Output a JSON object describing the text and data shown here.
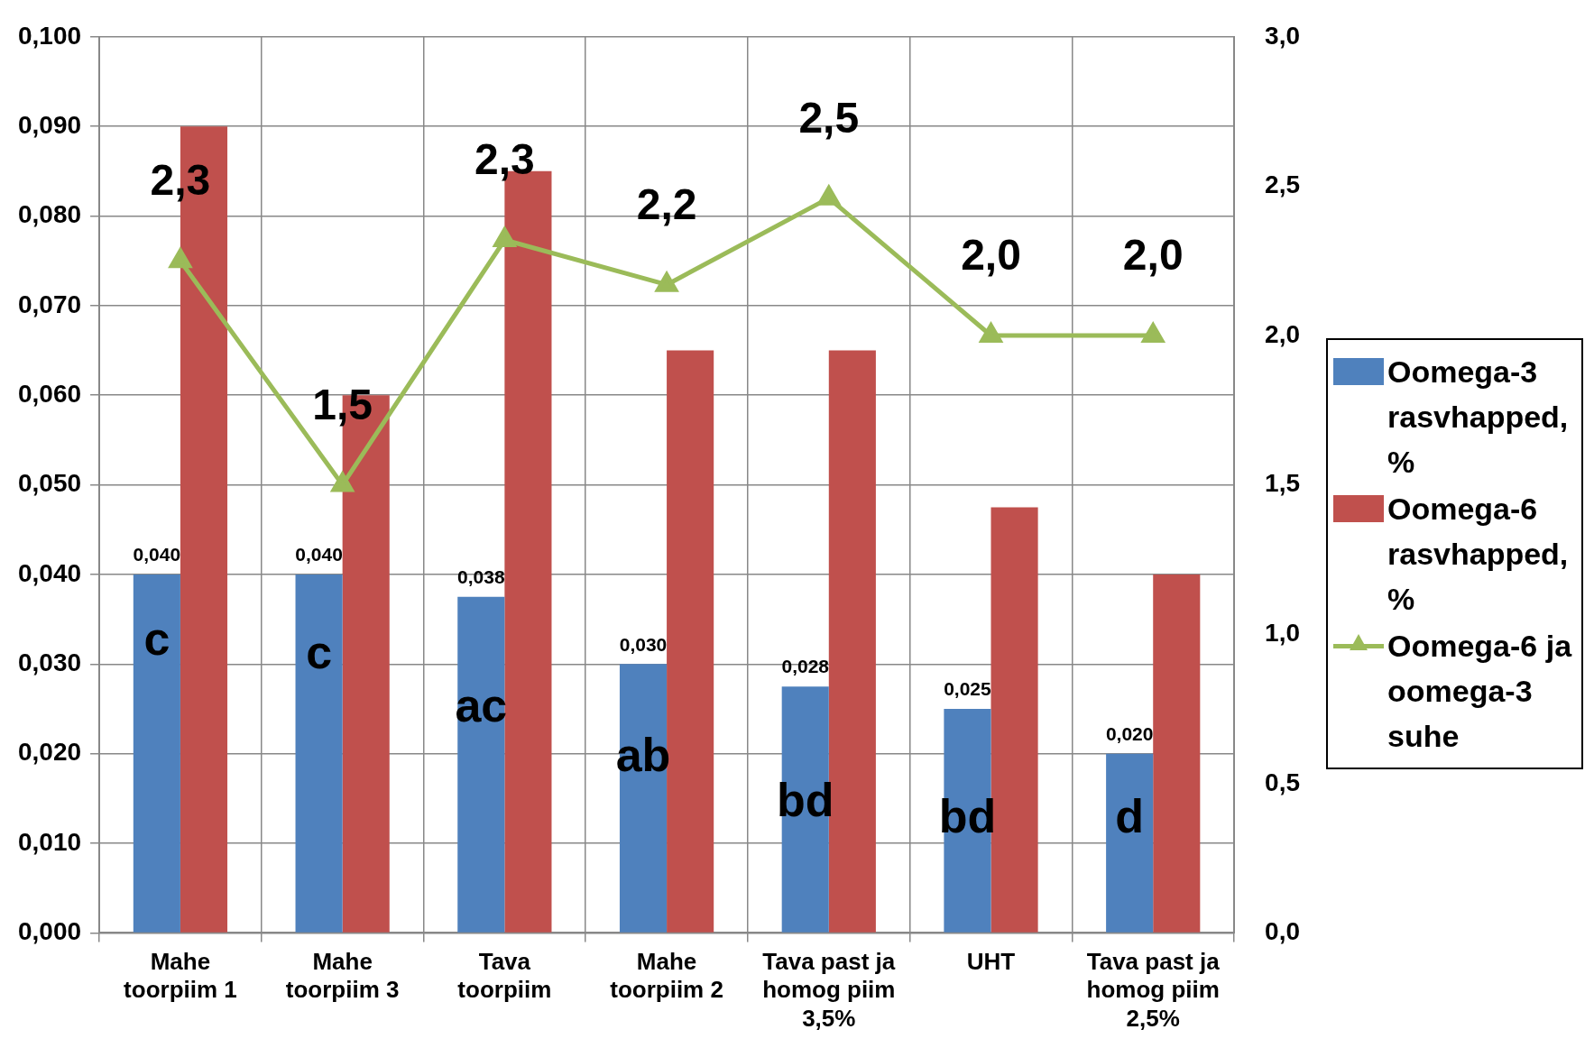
{
  "chart_data": {
    "type": "bar",
    "categories": [
      "Mahe toorpiim 1",
      "Mahe toorpiim 3",
      "Tava toorpiim",
      "Mahe toorpiim 2",
      "Tava past ja homog piim 3,5%",
      "UHT",
      "Tava past ja homog piim 2,5%"
    ],
    "series": [
      {
        "name": "Oomega-3 rasvhapped, %",
        "color": "#4f81bd",
        "values": [
          0.04,
          0.04,
          0.0375,
          0.03,
          0.0275,
          0.025,
          0.02
        ],
        "value_labels": [
          "0,040",
          "0,040",
          "0,038",
          "0,030",
          "0,028",
          "0,025",
          "0,020"
        ]
      },
      {
        "name": "Oomega-6 rasvhapped, %",
        "color": "#c0504d",
        "values": [
          0.09,
          0.06,
          0.085,
          0.065,
          0.065,
          0.0475,
          0.04
        ]
      },
      {
        "name": "Oomega-6 ja oomega-3 suhe",
        "type": "line",
        "axis": "y2",
        "color": "#9bbb59",
        "marker": "triangle",
        "values": [
          2.25,
          1.5,
          2.32,
          2.17,
          2.46,
          2.0,
          2.0
        ],
        "value_labels": [
          "2,3",
          "1,5",
          "2,3",
          "2,2",
          "2,5",
          "2,0",
          "2,0"
        ]
      }
    ],
    "ylim": [
      0,
      0.1
    ],
    "yticks": [
      {
        "value": 0,
        "label": "0,000"
      },
      {
        "value": 0.01,
        "label": "0,010"
      },
      {
        "value": 0.02,
        "label": "0,020"
      },
      {
        "value": 0.03,
        "label": "0,030"
      },
      {
        "value": 0.04,
        "label": "0,040"
      },
      {
        "value": 0.05,
        "label": "0,050"
      },
      {
        "value": 0.06,
        "label": "0,060"
      },
      {
        "value": 0.07,
        "label": "0,070"
      },
      {
        "value": 0.08,
        "label": "0,080"
      },
      {
        "value": 0.09,
        "label": "0,090"
      },
      {
        "value": 0.1,
        "label": "0,100"
      }
    ],
    "y2lim": [
      0,
      3
    ],
    "y2ticks": [
      {
        "value": 0,
        "label": "0,0"
      },
      {
        "value": 0.5,
        "label": "0,5"
      },
      {
        "value": 1,
        "label": "1,0"
      },
      {
        "value": 1.5,
        "label": "1,5"
      },
      {
        "value": 2,
        "label": "2,0"
      },
      {
        "value": 2.5,
        "label": "2,5"
      },
      {
        "value": 3,
        "label": "3,0"
      }
    ],
    "annotations": [
      {
        "text": "c",
        "x": "Mahe toorpiim 1",
        "y": 0.0325
      },
      {
        "text": "c",
        "x": "Mahe toorpiim 3",
        "y": 0.031
      },
      {
        "text": "ac",
        "x": "Tava toorpiim",
        "y": 0.025
      },
      {
        "text": "ab",
        "x": "Mahe toorpiim 2",
        "y": 0.0195
      },
      {
        "text": "bd",
        "x": "Tava past ja homog piim 3,5%",
        "y": 0.0145
      },
      {
        "text": "bd",
        "x": "UHT",
        "y": 0.0127
      },
      {
        "text": "d",
        "x": "Tava past ja homog piim 2,5%",
        "y": 0.0127
      }
    ],
    "grid": true,
    "legend": "right"
  }
}
